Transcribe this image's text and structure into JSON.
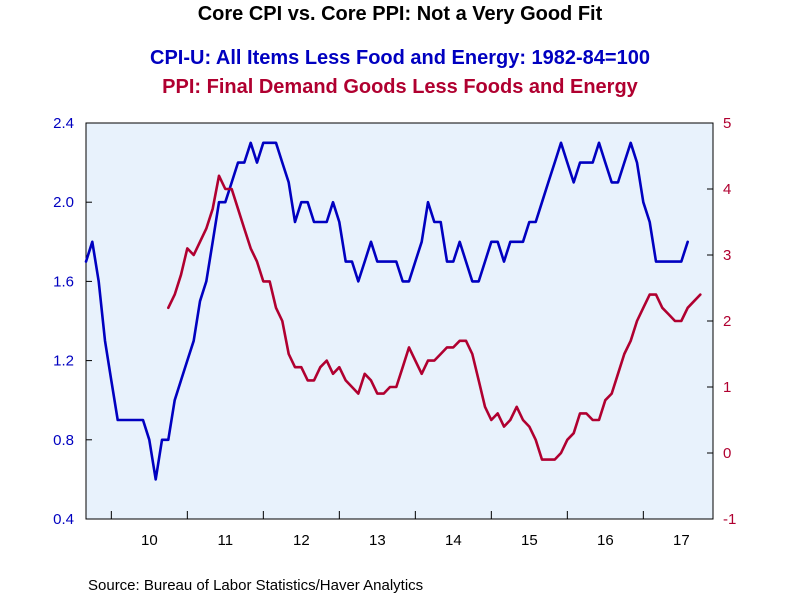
{
  "chart_data": {
    "type": "line",
    "title": "Core CPI vs. Core PPI: Not a Very Good Fit",
    "legend_placement": "top",
    "source": "Source:  Bureau of Labor Statistics/Haver Analytics",
    "x_tick_labels": [
      "10",
      "11",
      "12",
      "13",
      "14",
      "15",
      "16",
      "17"
    ],
    "x_range": [
      "2009-09",
      "2017-12"
    ],
    "left_axis": {
      "ticks": [
        "0.4",
        "0.8",
        "1.2",
        "1.6",
        "2.0",
        "2.4"
      ],
      "ylim": [
        0.4,
        2.4
      ],
      "color": "#0000c0"
    },
    "right_axis": {
      "ticks": [
        "-1",
        "0",
        "1",
        "2",
        "3",
        "4",
        "5"
      ],
      "ylim": [
        -1,
        5
      ],
      "color": "#b00030"
    },
    "grid": false,
    "plot_background": "#e8f2fc",
    "series": [
      {
        "name": "CPI-U: All Items Less Food and Energy: 1982-84=100",
        "axis": "left",
        "color": "#0000c0",
        "start": "2009-09",
        "values": [
          1.7,
          1.8,
          1.6,
          1.3,
          1.1,
          0.9,
          0.9,
          0.9,
          0.9,
          0.9,
          0.8,
          0.6,
          0.8,
          0.8,
          1.0,
          1.1,
          1.2,
          1.3,
          1.5,
          1.6,
          1.8,
          2.0,
          2.0,
          2.1,
          2.2,
          2.2,
          2.3,
          2.2,
          2.3,
          2.3,
          2.3,
          2.2,
          2.1,
          1.9,
          2.0,
          2.0,
          1.9,
          1.9,
          1.9,
          2.0,
          1.9,
          1.7,
          1.7,
          1.6,
          1.7,
          1.8,
          1.7,
          1.7,
          1.7,
          1.7,
          1.6,
          1.6,
          1.7,
          1.8,
          2.0,
          1.9,
          1.9,
          1.7,
          1.7,
          1.8,
          1.7,
          1.6,
          1.6,
          1.7,
          1.8,
          1.8,
          1.7,
          1.8,
          1.8,
          1.8,
          1.9,
          1.9,
          2.0,
          2.1,
          2.2,
          2.3,
          2.2,
          2.1,
          2.2,
          2.2,
          2.2,
          2.3,
          2.2,
          2.1,
          2.1,
          2.2,
          2.3,
          2.2,
          2.0,
          1.9,
          1.7,
          1.7,
          1.7,
          1.7,
          1.7,
          1.8
        ]
      },
      {
        "name": "PPI: Final Demand Goods Less Foods and Energy",
        "axis": "right",
        "color": "#b00030",
        "start": "2010-10",
        "values": [
          2.2,
          2.4,
          2.7,
          3.1,
          3.0,
          3.2,
          3.4,
          3.7,
          4.2,
          4.0,
          4.0,
          3.7,
          3.4,
          3.1,
          2.9,
          2.6,
          2.6,
          2.2,
          2.0,
          1.5,
          1.3,
          1.3,
          1.1,
          1.1,
          1.3,
          1.4,
          1.2,
          1.3,
          1.1,
          1.0,
          0.9,
          1.2,
          1.1,
          0.9,
          0.9,
          1.0,
          1.0,
          1.3,
          1.6,
          1.4,
          1.2,
          1.4,
          1.4,
          1.5,
          1.6,
          1.6,
          1.7,
          1.7,
          1.5,
          1.1,
          0.7,
          0.5,
          0.6,
          0.4,
          0.5,
          0.7,
          0.5,
          0.4,
          0.2,
          -0.1,
          -0.1,
          -0.1,
          0.0,
          0.2,
          0.3,
          0.6,
          0.6,
          0.5,
          0.5,
          0.8,
          0.9,
          1.2,
          1.5,
          1.7,
          2.0,
          2.2,
          2.4,
          2.4,
          2.2,
          2.1,
          2.0,
          2.0,
          2.2,
          2.3,
          2.4
        ]
      }
    ]
  }
}
